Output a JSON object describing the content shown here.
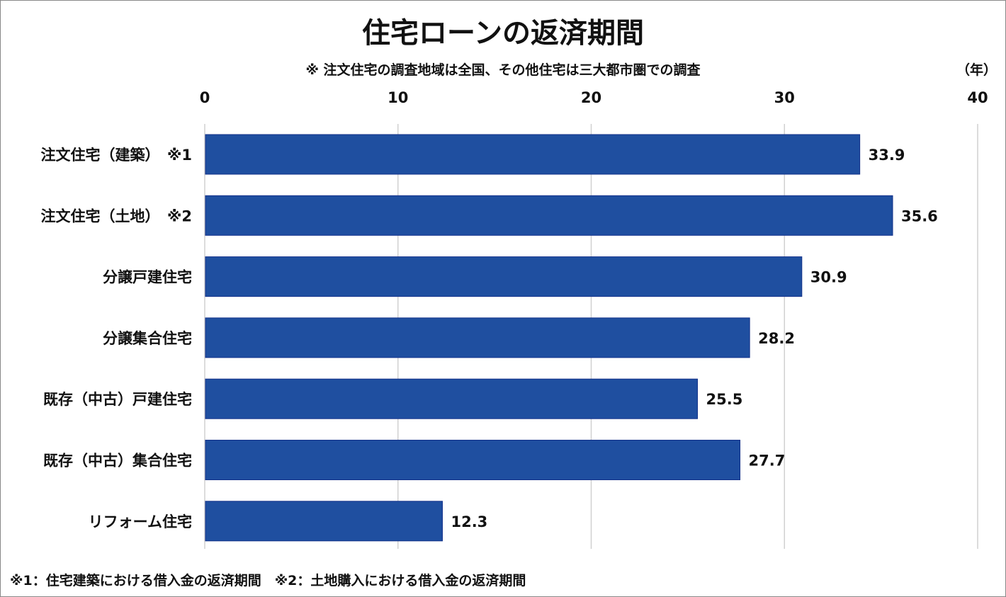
{
  "chart_data": {
    "type": "bar",
    "orientation": "horizontal",
    "title": "住宅ローンの返済期間",
    "subtitle": "※ 注文住宅の調査地域は全国、その他住宅は三大都市圏での調査",
    "unit_label": "（年）",
    "categories": [
      "注文住宅（建築）　※1",
      "注文住宅（土地）　※2",
      "分譲戸建住宅",
      "分譲集合住宅",
      "既存（中古）戸建住宅",
      "既存（中古）集合住宅",
      "リフォーム住宅"
    ],
    "values": [
      33.9,
      35.6,
      30.9,
      28.2,
      25.5,
      27.7,
      12.3
    ],
    "value_labels": [
      "33.9",
      "35.6",
      "30.9",
      "28.2",
      "25.5",
      "27.7",
      "12.3"
    ],
    "xlim": [
      0,
      40
    ],
    "ticks": [
      "0",
      "10",
      "20",
      "30",
      "40"
    ],
    "tick_values": [
      0,
      10,
      20,
      30,
      40
    ],
    "axis_position": "top",
    "grid": true,
    "bar_color": "#1f4fa0",
    "footnote": "※1：住宅建築における借入金の返済期間　※2：土地購入における借入金の返済期間"
  }
}
